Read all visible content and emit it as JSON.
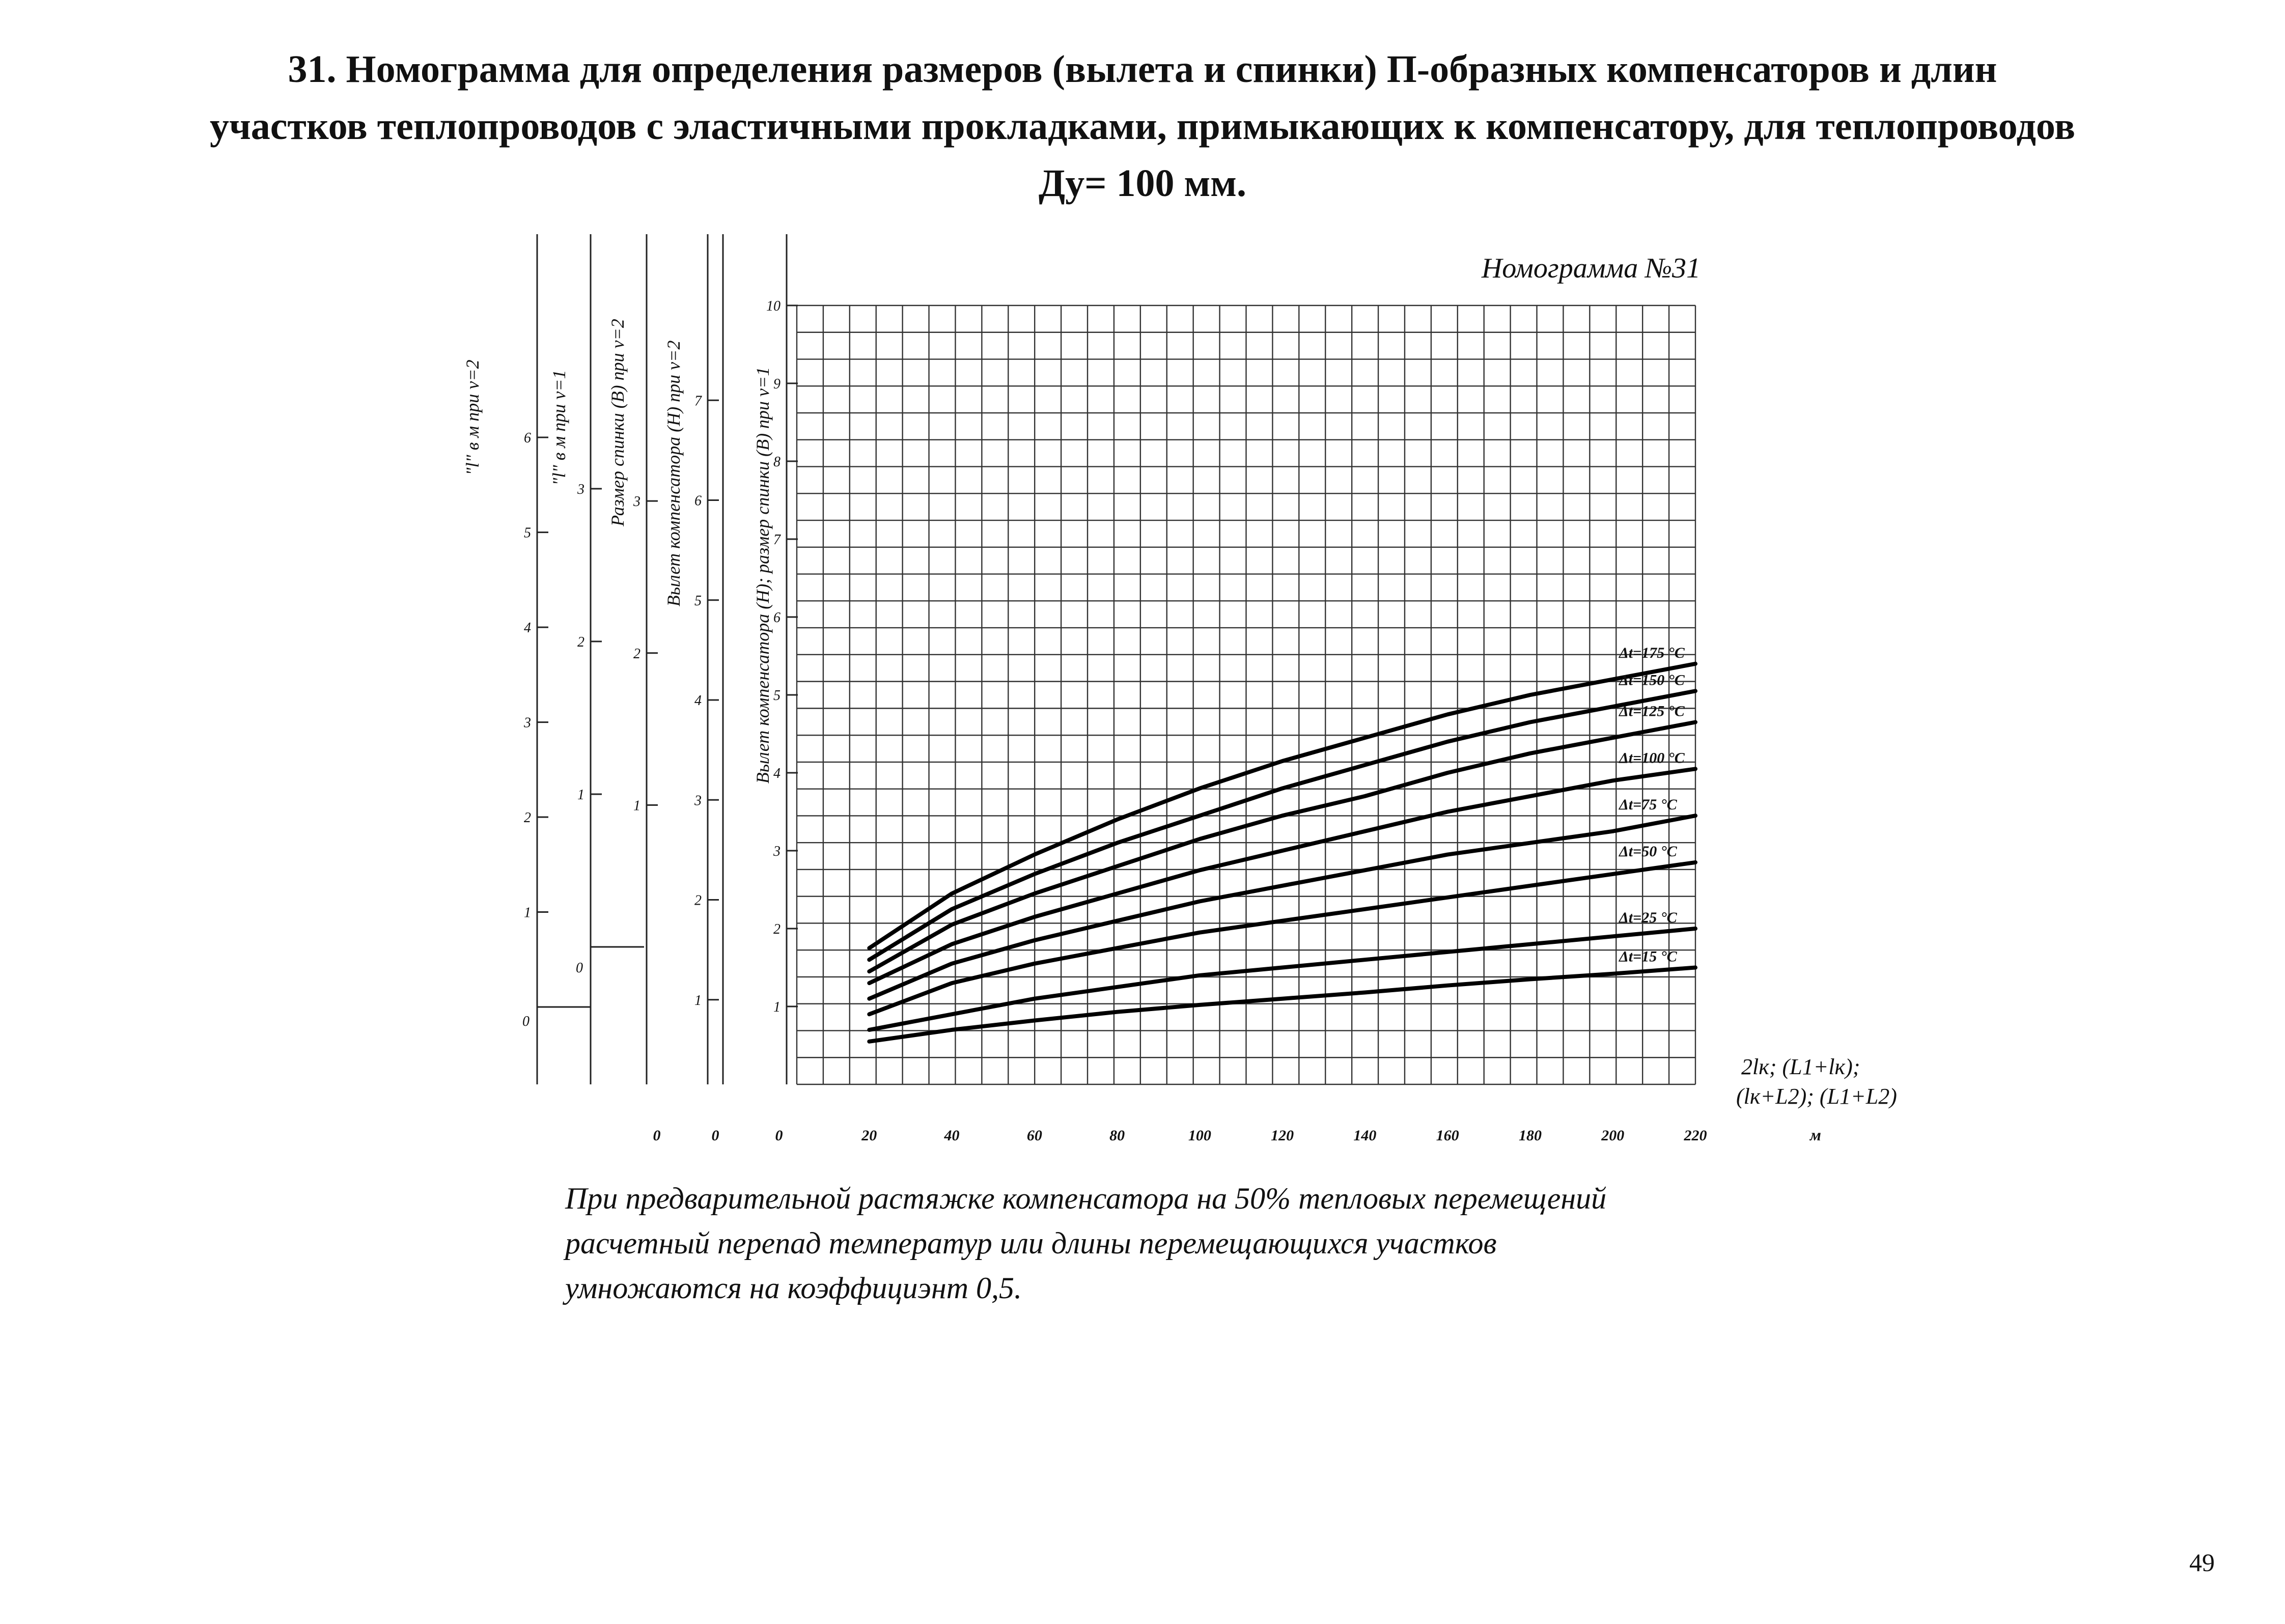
{
  "page": {
    "heading_lines": [
      "31. Номограмма  для определения размеров (вылета  и спинки)  П-образных компенсаторов и длин",
      "участков  теплопроводов  с  эластичными прокладками, примыкающих к  компенсатору, для теплопроводов",
      "Ду= 100 мм."
    ],
    "note_lines": [
      "При предварительной растяжке компенсатора на 50% тепловых перемещений",
      "расчетный перепад температур или длины перемещающихся участков",
      "умножаются на коэффициэнт 0,5."
    ],
    "page_number": "49"
  },
  "chart_data": {
    "type": "line",
    "title": "Номограмма №31",
    "xlabel_lines": [
      "2lк; (L1+lк);",
      "(lк+L2); (L1+L2)"
    ],
    "x_unit": "м",
    "xlim": [
      0,
      220
    ],
    "ylim": [
      0,
      10
    ],
    "x_ticks": [
      "20",
      "40",
      "60",
      "80",
      "100",
      "120",
      "140",
      "160",
      "180",
      "200",
      "220"
    ],
    "grid": true,
    "series": [
      {
        "name": "Δt=175 °C",
        "x": [
          20,
          40,
          60,
          80,
          100,
          120,
          140,
          160,
          180,
          200,
          220
        ],
        "y": [
          1.75,
          2.45,
          2.95,
          3.4,
          3.8,
          4.15,
          4.45,
          4.75,
          5.0,
          5.2,
          5.4
        ]
      },
      {
        "name": "Δt=150 °C",
        "x": [
          20,
          40,
          60,
          80,
          100,
          120,
          140,
          160,
          180,
          200,
          220
        ],
        "y": [
          1.6,
          2.25,
          2.7,
          3.1,
          3.45,
          3.8,
          4.1,
          4.4,
          4.65,
          4.85,
          5.05
        ]
      },
      {
        "name": "Δt=125 °C",
        "x": [
          20,
          40,
          60,
          80,
          100,
          120,
          140,
          160,
          180,
          200,
          220
        ],
        "y": [
          1.45,
          2.05,
          2.45,
          2.8,
          3.15,
          3.45,
          3.7,
          4.0,
          4.25,
          4.45,
          4.65
        ]
      },
      {
        "name": "Δt=100 °C",
        "x": [
          20,
          40,
          60,
          80,
          100,
          120,
          140,
          160,
          180,
          200,
          220
        ],
        "y": [
          1.3,
          1.8,
          2.15,
          2.45,
          2.75,
          3.0,
          3.25,
          3.5,
          3.7,
          3.9,
          4.05
        ]
      },
      {
        "name": "Δt=75 °C",
        "x": [
          20,
          40,
          60,
          80,
          100,
          120,
          140,
          160,
          180,
          200,
          220
        ],
        "y": [
          1.1,
          1.55,
          1.85,
          2.1,
          2.35,
          2.55,
          2.75,
          2.95,
          3.1,
          3.25,
          3.45
        ]
      },
      {
        "name": "Δt=50 °C",
        "x": [
          20,
          40,
          60,
          80,
          100,
          120,
          140,
          160,
          180,
          200,
          220
        ],
        "y": [
          0.9,
          1.3,
          1.55,
          1.75,
          1.95,
          2.1,
          2.25,
          2.4,
          2.55,
          2.7,
          2.85
        ]
      },
      {
        "name": "Δt=25 °C",
        "x": [
          20,
          40,
          60,
          80,
          100,
          120,
          140,
          160,
          180,
          200,
          220
        ],
        "y": [
          0.7,
          0.9,
          1.1,
          1.25,
          1.4,
          1.5,
          1.6,
          1.7,
          1.8,
          1.9,
          2.0
        ]
      },
      {
        "name": "Δt=15 °C",
        "x": [
          20,
          40,
          60,
          80,
          100,
          120,
          140,
          160,
          180,
          200,
          220
        ],
        "y": [
          0.55,
          0.7,
          0.82,
          0.93,
          1.02,
          1.1,
          1.18,
          1.27,
          1.35,
          1.42,
          1.5
        ]
      }
    ],
    "secondary_axes": [
      {
        "label": "\"l\" в м при  ν=2",
        "ticks": [
          "0",
          "1",
          "2",
          "3",
          "4",
          "5",
          "6"
        ],
        "max": 6.8
      },
      {
        "label": "\"l\" в м при  ν=1",
        "ticks": [
          "0",
          "1",
          "2",
          "3"
        ],
        "max": 3.4
      },
      {
        "label": "Размер спинки (В) при  ν=2",
        "ticks": [
          "0",
          "1",
          "2",
          "3"
        ],
        "max": 3.6
      },
      {
        "label": "Вылет компенсатора (Н) при  ν=2",
        "ticks": [
          "0",
          "1",
          "2",
          "3",
          "4",
          "5",
          "6",
          "7"
        ],
        "max": 8.0
      },
      {
        "label": "Вылет компенсатора (Н); размер спинки (В) при  ν=1",
        "ticks": [
          "0",
          "1",
          "2",
          "3",
          "4",
          "5",
          "6",
          "7",
          "8",
          "9",
          "10"
        ],
        "max": 10.0
      }
    ]
  }
}
